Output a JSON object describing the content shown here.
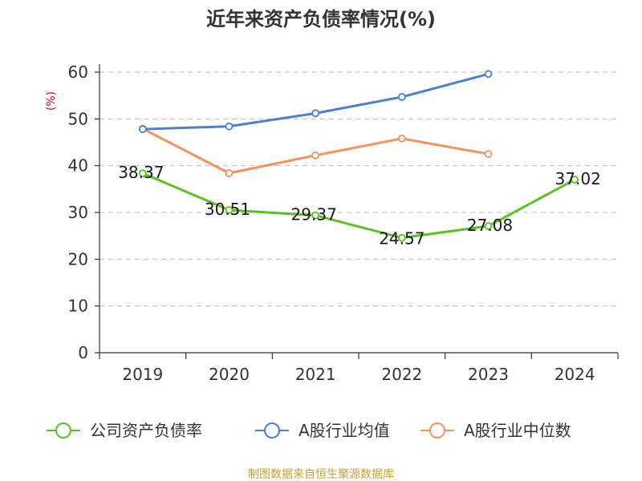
{
  "chart_data": {
    "type": "line",
    "title": "近年来资产负债率情况(%)",
    "ylabel": "(%)",
    "categories": [
      "2019",
      "2020",
      "2021",
      "2022",
      "2023",
      "2024"
    ],
    "y_ticks": [
      "0",
      "10",
      "20",
      "30",
      "40",
      "50",
      "60"
    ],
    "ylim": [
      0,
      60
    ],
    "grid": true,
    "legend_position": "bottom",
    "series": [
      {
        "name": "公司资产负债率",
        "color": "#5bc124",
        "values": [
          38.37,
          30.51,
          29.37,
          24.57,
          27.08,
          37.02
        ],
        "labels": [
          "38.37",
          "30.51",
          "29.37",
          "24.57",
          "27.08",
          "37.02"
        ]
      },
      {
        "name": "A股行业均值",
        "color": "#4a7fd4",
        "values": [
          47.8,
          48.4,
          51.2,
          54.7,
          59.6,
          null
        ]
      },
      {
        "name": "A股行业中位数",
        "color": "#f5915a",
        "values": [
          47.9,
          38.4,
          42.2,
          45.8,
          42.5,
          null
        ]
      }
    ],
    "source": "制图数据来自恒生聚源数据库"
  }
}
